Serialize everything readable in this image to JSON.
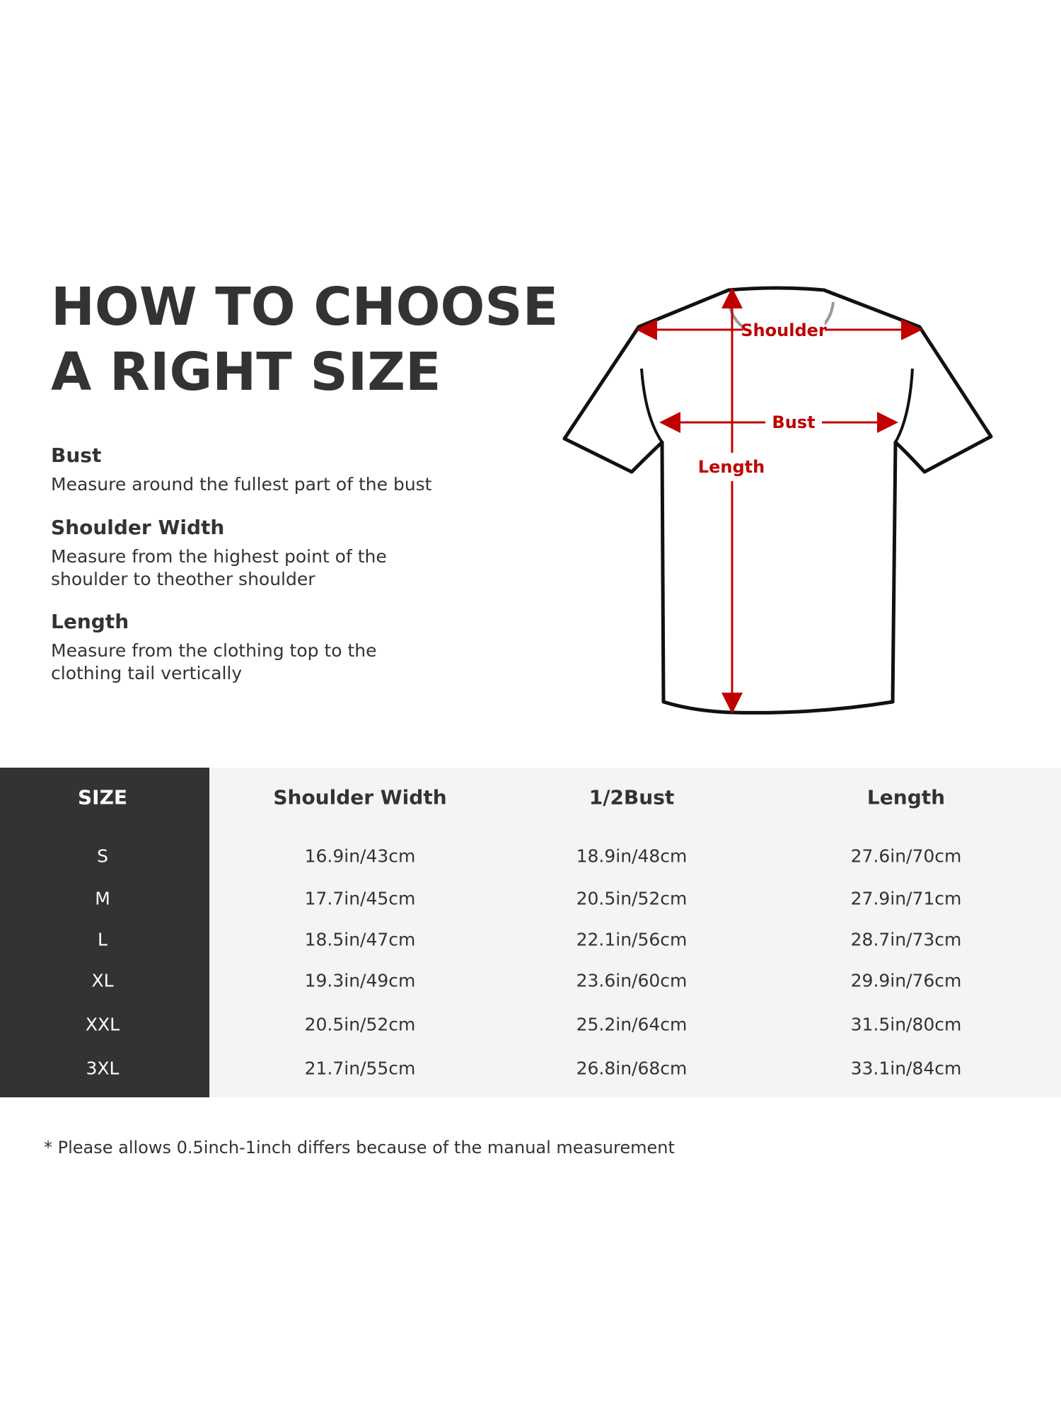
{
  "title": {
    "line1": "HOW TO CHOOSE",
    "line2": "A RIGHT SIZE"
  },
  "guide": [
    {
      "heading": "Bust",
      "desc": [
        "Measure around the fullest part of the bust"
      ]
    },
    {
      "heading": "Shoulder Width",
      "desc": [
        "Measure from the highest point of the",
        "shoulder to theother shoulder"
      ]
    },
    {
      "heading": "Length",
      "desc": [
        "Measure from the clothing top to the",
        "clothing tail vertically"
      ]
    }
  ],
  "diagram": {
    "shoulder_label": "Shoulder",
    "bust_label": "Bust",
    "length_label": "Length",
    "accent_color": "#c00000"
  },
  "table": {
    "headers": [
      "SIZE",
      "Shoulder Width",
      "1/2Bust",
      "Length"
    ],
    "rows": [
      [
        "S",
        "16.9in/43cm",
        "18.9in/48cm",
        "27.6in/70cm"
      ],
      [
        "M",
        "17.7in/45cm",
        "20.5in/52cm",
        "27.9in/71cm"
      ],
      [
        "L",
        "18.5in/47cm",
        "22.1in/56cm",
        "28.7in/73cm"
      ],
      [
        "XL",
        "19.3in/49cm",
        "23.6in/60cm",
        "29.9in/76cm"
      ],
      [
        "XXL",
        "20.5in/52cm",
        "25.2in/64cm",
        "31.5in/80cm"
      ],
      [
        "3XL",
        "21.7in/55cm",
        "26.8in/68cm",
        "33.1in/84cm"
      ]
    ]
  },
  "footnote": "* Please allows 0.5inch-1inch differs because of the  manual measurement"
}
